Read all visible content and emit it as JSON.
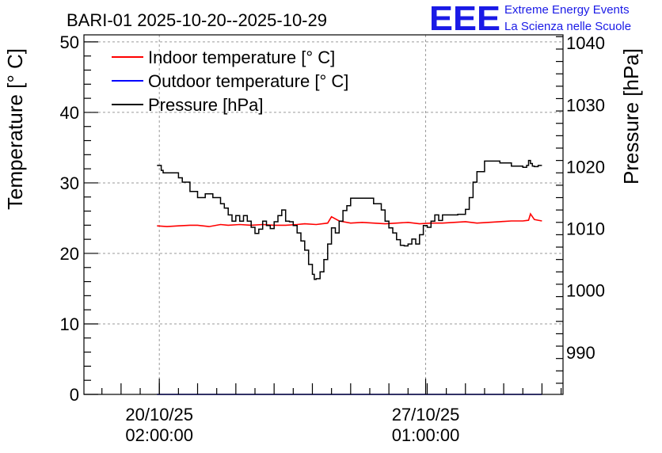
{
  "chart_data": {
    "type": "line",
    "title": "BARI-01 2025-10-20--2025-10-29",
    "ylabel_left": "Temperature [° C]",
    "ylabel_right": "Pressure [hPa]",
    "ylim_left": [
      0,
      51
    ],
    "ylim_right": [
      983.2,
      1041.3
    ],
    "left_ticks": [
      0,
      10,
      20,
      30,
      40,
      50
    ],
    "right_ticks": [
      990,
      1000,
      1010,
      1020,
      1030,
      1040
    ],
    "x_range_days": [
      -1.97,
      10.55
    ],
    "x_ticks": [
      {
        "day": 0,
        "line1": "20/10/25",
        "line2": "02:00:00"
      },
      {
        "day": 6.96,
        "line1": "27/10/25",
        "line2": "01:00:00"
      }
    ],
    "grid": true,
    "legend_position": "top-left",
    "series": [
      {
        "name": "Indoor temperature [° C]",
        "color": "#ff0000",
        "axis": "left",
        "x": [
          -0.06,
          0.2,
          0.5,
          0.8,
          1.0,
          1.3,
          1.6,
          1.8,
          2.1,
          2.4,
          2.7,
          3.0,
          3.3,
          3.6,
          3.8,
          4.1,
          4.4,
          4.5,
          4.7,
          5.0,
          5.3,
          5.6,
          5.9,
          6.2,
          6.5,
          6.8,
          7.1,
          7.4,
          7.7,
          8.0,
          8.3,
          8.6,
          8.9,
          9.2,
          9.5,
          9.65,
          9.7,
          9.8,
          9.9,
          10.0
        ],
        "values": [
          23.9,
          23.8,
          23.9,
          24.0,
          24.0,
          23.8,
          24.1,
          24.0,
          24.1,
          24.0,
          24.1,
          24.0,
          24.0,
          24.1,
          24.2,
          24.1,
          24.3,
          25.2,
          24.6,
          24.3,
          24.4,
          24.3,
          24.2,
          24.3,
          24.4,
          24.2,
          24.3,
          24.3,
          24.4,
          24.5,
          24.3,
          24.4,
          24.5,
          24.6,
          24.6,
          24.7,
          25.6,
          24.8,
          24.7,
          24.6
        ]
      },
      {
        "name": "Outdoor temperature [° C]",
        "color": "#0000ff",
        "axis": "left",
        "x": [
          -0.06,
          10.0
        ],
        "values": [
          0,
          0
        ]
      },
      {
        "name": "Pressure [hPa]",
        "color": "#000000",
        "axis": "right",
        "x": [
          -0.06,
          0.05,
          0.1,
          0.35,
          0.5,
          0.6,
          0.8,
          1.0,
          1.2,
          1.4,
          1.6,
          1.7,
          1.8,
          1.9,
          2.0,
          2.1,
          2.2,
          2.3,
          2.4,
          2.5,
          2.6,
          2.7,
          2.8,
          2.9,
          3.0,
          3.1,
          3.2,
          3.3,
          3.4,
          3.5,
          3.6,
          3.7,
          3.8,
          3.9,
          4.0,
          4.05,
          4.1,
          4.2,
          4.3,
          4.4,
          4.5,
          4.6,
          4.7,
          4.8,
          4.9,
          5.0,
          5.4,
          5.6,
          5.8,
          5.9,
          6.0,
          6.1,
          6.2,
          6.3,
          6.4,
          6.5,
          6.6,
          6.7,
          6.8,
          6.9,
          7.0,
          7.1,
          7.2,
          7.3,
          7.4,
          7.6,
          7.8,
          8.0,
          8.1,
          8.2,
          8.3,
          8.5,
          8.7,
          8.9,
          9.2,
          9.5,
          9.6,
          9.65,
          9.7,
          9.75,
          9.8,
          9.9,
          10.0
        ],
        "values": [
          1020.2,
          1019.4,
          1019.0,
          1019.0,
          1018.2,
          1017.5,
          1016.0,
          1015.0,
          1015.6,
          1015.0,
          1014.0,
          1013.3,
          1012.2,
          1011.2,
          1012.1,
          1011.2,
          1012.1,
          1011.2,
          1010.2,
          1009.2,
          1009.9,
          1011.2,
          1010.5,
          1010.0,
          1011.1,
          1012.1,
          1013.0,
          1011.2,
          1011.1,
          1010.5,
          1009.3,
          1008.0,
          1006.5,
          1004.2,
          1002.6,
          1001.8,
          1001.9,
          1003.0,
          1005.0,
          1007.5,
          1010.1,
          1009.3,
          1011.2,
          1012.9,
          1013.7,
          1014.9,
          1014.9,
          1014.0,
          1013.0,
          1011.2,
          1010.1,
          1009.3,
          1008.2,
          1007.3,
          1007.2,
          1007.5,
          1008.3,
          1007.5,
          1009.0,
          1010.5,
          1010.2,
          1011.2,
          1012.2,
          1011.3,
          1012.2,
          1012.2,
          1012.3,
          1013.1,
          1015.0,
          1017.5,
          1019.2,
          1020.9,
          1020.9,
          1020.6,
          1020.1,
          1019.9,
          1020.2,
          1021.0,
          1020.5,
          1020.1,
          1020.0,
          1020.2,
          1020.2
        ]
      }
    ]
  },
  "logo": {
    "mark": "EEE",
    "line1": "Extreme Energy Events",
    "line2": "La Scienza nelle Scuole"
  },
  "colors": {
    "grid": "#9a9a9a",
    "logo": "#1a1ae6"
  }
}
